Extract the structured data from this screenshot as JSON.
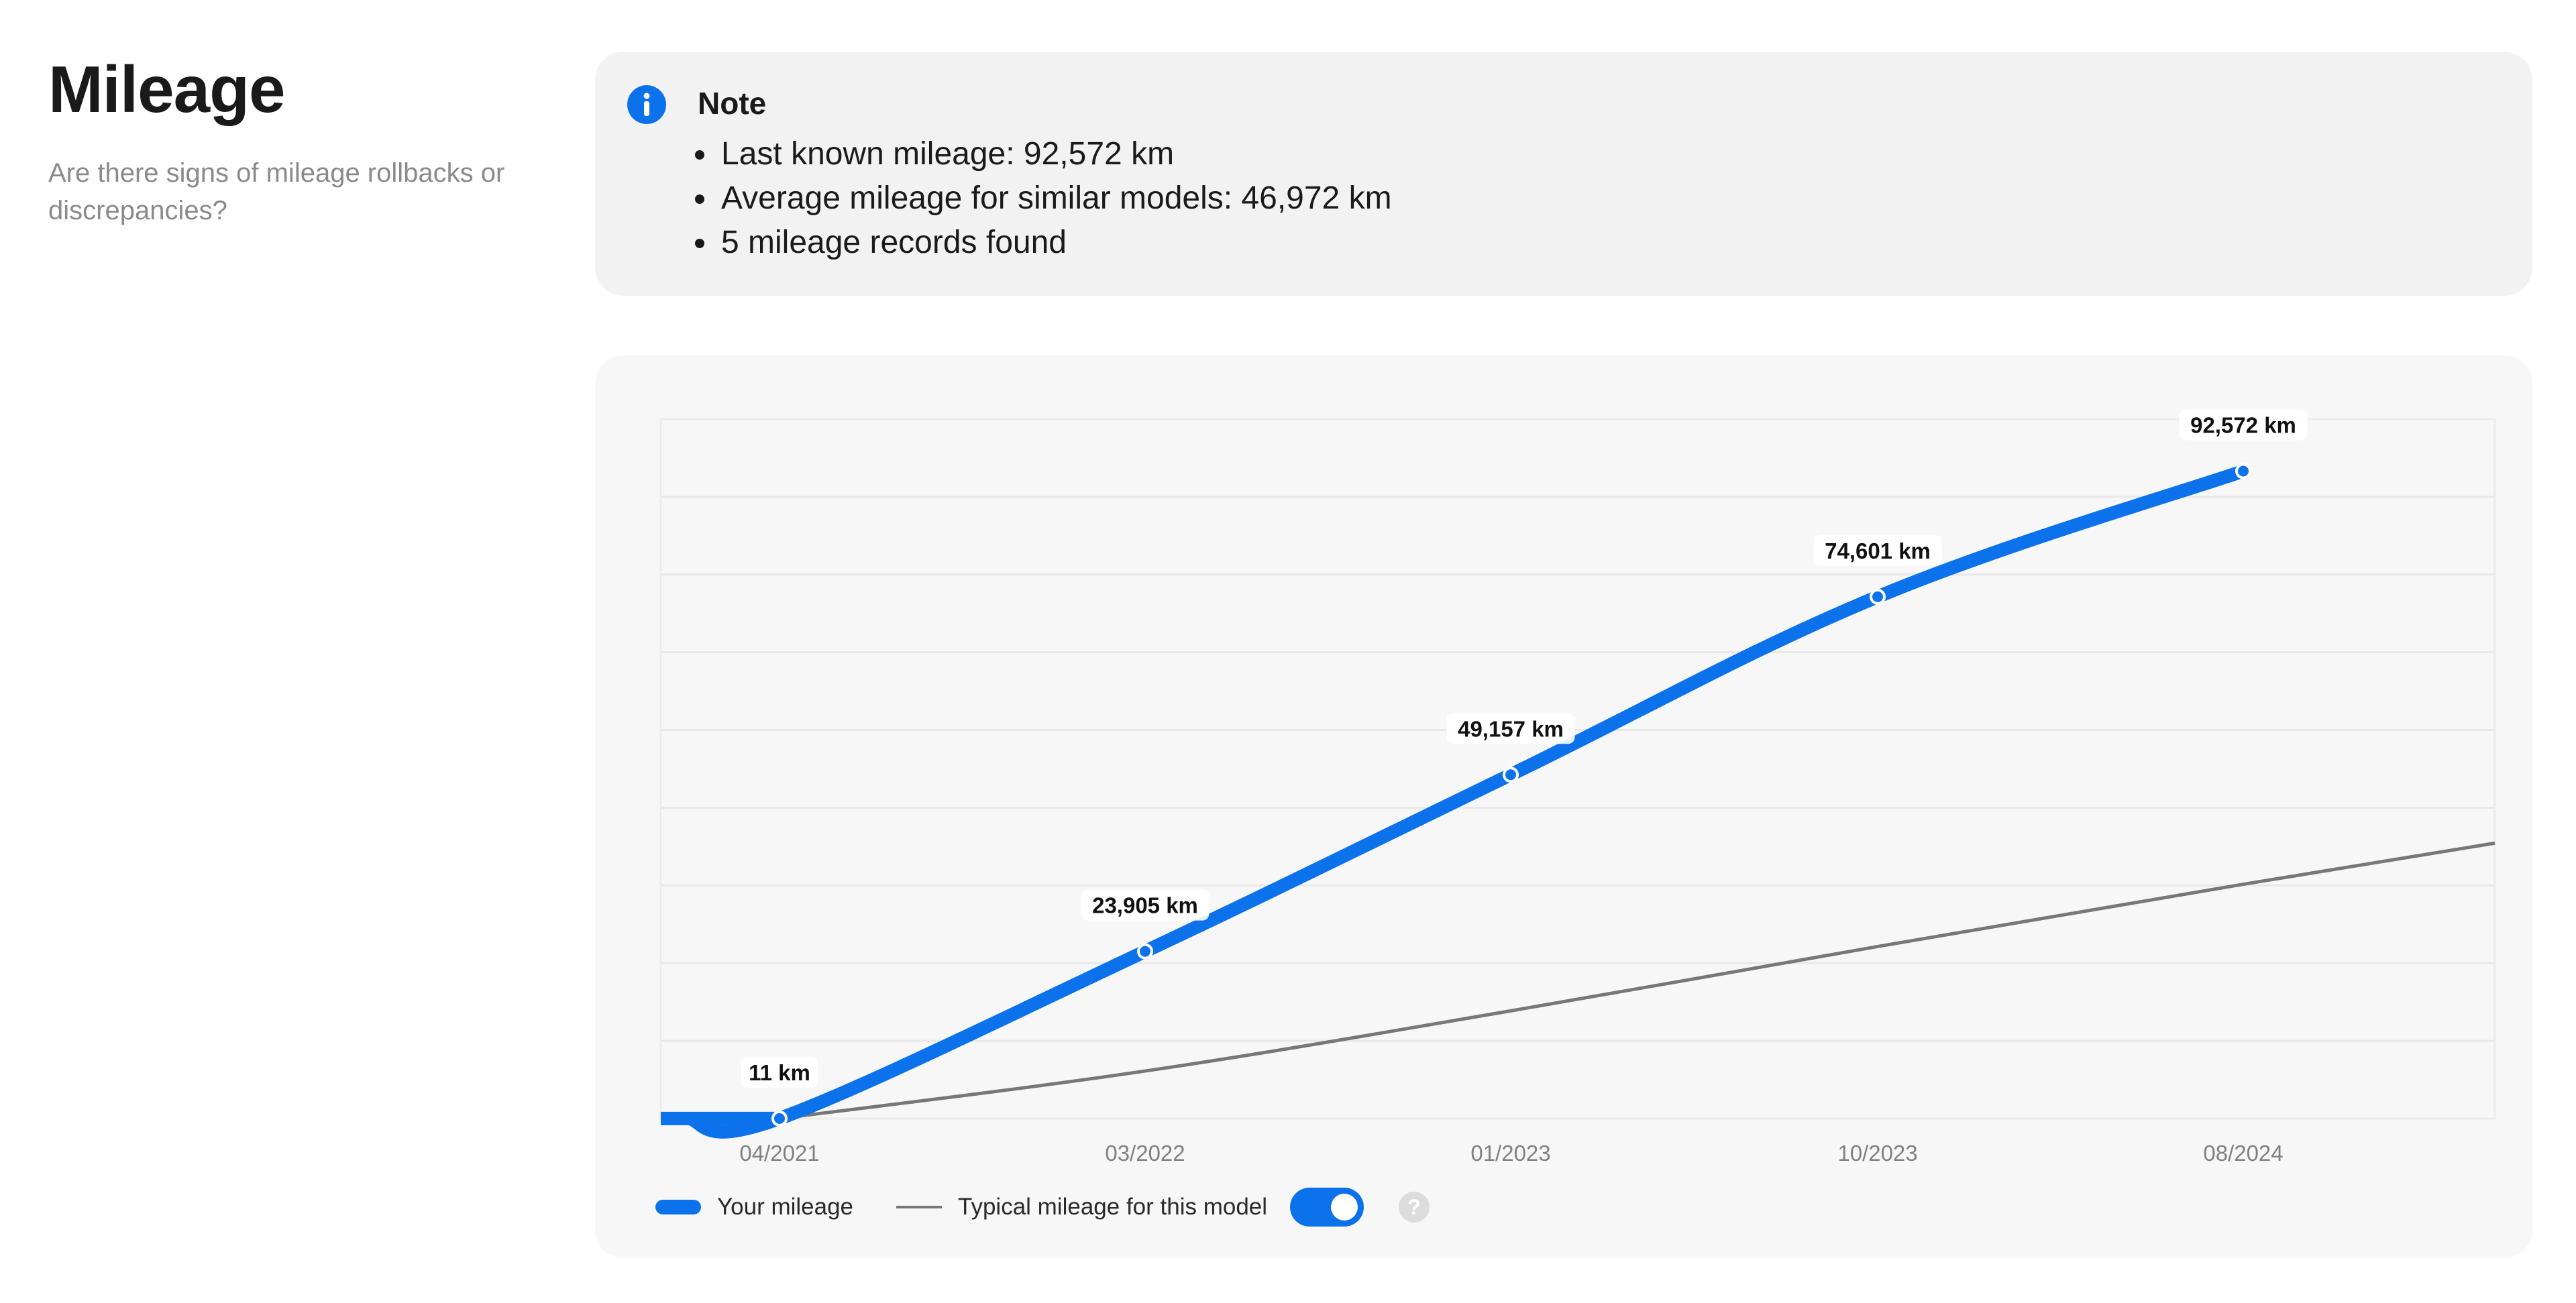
{
  "page": {
    "title": "Mileage",
    "subtitle": "Are there signs of mileage rollbacks or discrepancies?"
  },
  "note": {
    "icon": "info-icon",
    "title": "Note",
    "items": [
      "Last known mileage: 92,572 km",
      "Average mileage for similar models: 46,972 km",
      "5 mileage records found"
    ]
  },
  "colors": {
    "accent": "#0b72ec",
    "typical_line": "#777777"
  },
  "legend": {
    "your_mileage": "Your mileage",
    "typical_mileage": "Typical mileage for this model",
    "toggle_on": true,
    "help_icon": "question-mark-icon",
    "help_symbol": "?"
  },
  "chart_data": {
    "type": "line",
    "x_ticks": [
      "04/2021",
      "03/2022",
      "01/2023",
      "10/2023",
      "08/2024"
    ],
    "ylim": [
      0,
      100000
    ],
    "grid": true,
    "series": [
      {
        "name": "Your mileage",
        "x": [
          "04/2021",
          "03/2022",
          "01/2023",
          "10/2023",
          "08/2024"
        ],
        "values": [
          11,
          23905,
          49157,
          74601,
          92572
        ],
        "labels": [
          "11 km",
          "23,905 km",
          "49,157 km",
          "74,601 km",
          "92,572 km"
        ]
      },
      {
        "name": "Typical mileage for this model",
        "x": [
          "04/2021",
          "03/2022",
          "01/2023",
          "10/2023",
          "08/2024"
        ],
        "values": [
          0,
          6800,
          15400,
          24600,
          33500
        ]
      }
    ]
  }
}
